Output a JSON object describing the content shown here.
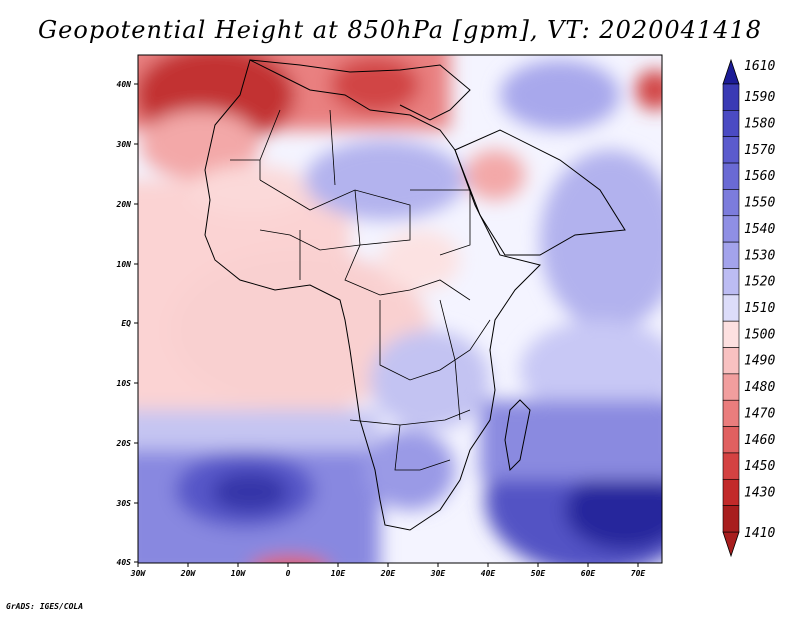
{
  "title": "Geopotential Height at 850hPa [gpm], VT: 2020041418",
  "credit": "GrADS: IGES/COLA",
  "map": {
    "lon_labels": [
      "30W",
      "20W",
      "10W",
      "0",
      "10E",
      "20E",
      "30E",
      "40E",
      "50E",
      "60E",
      "70E"
    ],
    "lat_labels": [
      "40N",
      "30N",
      "20N",
      "10N",
      "EQ",
      "10S",
      "20S",
      "30S",
      "40S"
    ]
  },
  "colorbar": {
    "levels": [
      "1610",
      "1590",
      "1580",
      "1570",
      "1560",
      "1550",
      "1540",
      "1530",
      "1520",
      "1510",
      "1500",
      "1490",
      "1480",
      "1470",
      "1460",
      "1450",
      "1430",
      "1410"
    ],
    "colors": [
      "#1c1c96",
      "#3a3ab4",
      "#4b4bc3",
      "#5b5bcd",
      "#6a6ad4",
      "#7c7cdc",
      "#8f8fe4",
      "#a3a3ec",
      "#bcbcf3",
      "#dcdcf9",
      "#fde0e0",
      "#f8c1c1",
      "#f19e9e",
      "#ea7d7d",
      "#e06060",
      "#d44242",
      "#c22a2a",
      "#a81e1e"
    ]
  }
}
